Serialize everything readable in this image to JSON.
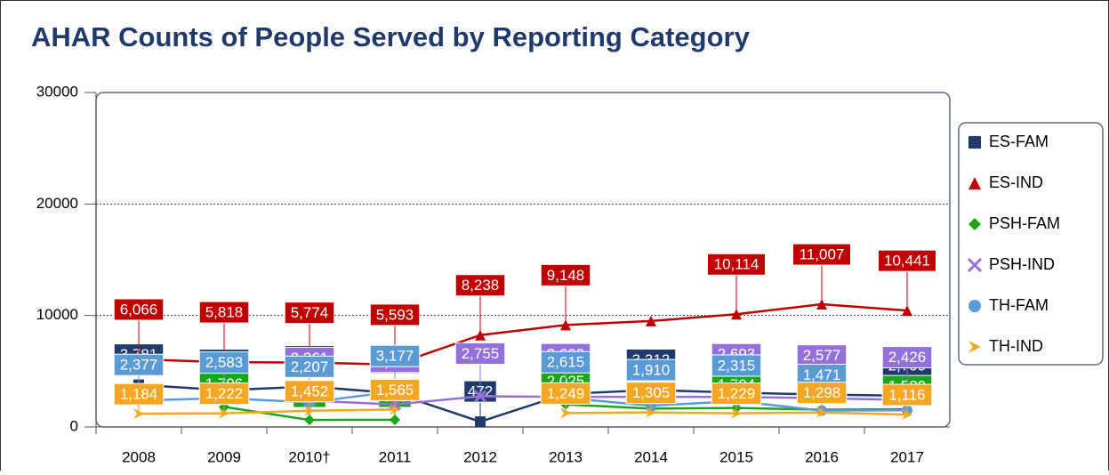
{
  "chart_data": {
    "type": "line",
    "title": "AHAR Counts of People Served by Reporting Category",
    "categories": [
      "2008",
      "2009",
      "2010†",
      "2011",
      "2012",
      "2013",
      "2014",
      "2015",
      "2016",
      "2017"
    ],
    "ylim": [
      0,
      30000
    ],
    "yticks": [
      0,
      10000,
      20000,
      30000
    ],
    "grid": true,
    "legend": "right",
    "series": [
      {
        "name": "ES-FAM",
        "color": "#1f3a6b",
        "marker": "square",
        "values": [
          3781,
          3299,
          3631,
          3035,
          472,
          2967,
          3312,
          3085,
          2900,
          2799
        ],
        "value_labels": [
          "3,781",
          "3,299",
          "3,631",
          "3,035",
          "472",
          "2,967",
          "3,312",
          "3,085",
          null,
          "2,799"
        ]
      },
      {
        "name": "ES-IND",
        "color": "#c00000",
        "marker": "triangle",
        "values": [
          6066,
          5818,
          5774,
          5593,
          8238,
          9148,
          9500,
          10114,
          11007,
          10441
        ],
        "value_labels": [
          "6,066",
          "5,818",
          "5,774",
          "5,593",
          "8,238",
          "9,148",
          null,
          "10,114",
          "11,007",
          "10,441"
        ]
      },
      {
        "name": "PSH-FAM",
        "color": "#1aa51a",
        "marker": "diamond",
        "values": [
          null,
          1796,
          633,
          640,
          null,
          2025,
          1650,
          1704,
          1553,
          1589
        ],
        "value_labels": [
          null,
          "1,796",
          "633",
          "640",
          null,
          "2,025",
          null,
          "1,704",
          "1,553",
          "1,589"
        ]
      },
      {
        "name": "PSH-IND",
        "color": "#9370db",
        "marker": "cross",
        "values": [
          null,
          null,
          2361,
          2013,
          2755,
          2699,
          2700,
          2693,
          2577,
          2426
        ],
        "value_labels": [
          null,
          null,
          "2,361",
          "2,013",
          "2,755",
          "2,699",
          null,
          "2,693",
          "2,577",
          "2,426"
        ]
      },
      {
        "name": "TH-FAM",
        "color": "#5b9bd5",
        "marker": "circle",
        "values": [
          2377,
          2583,
          2207,
          3177,
          null,
          2615,
          1910,
          2315,
          1471,
          1500
        ],
        "value_labels": [
          "2,377",
          "2,583",
          "2,207",
          "3,177",
          null,
          "2,615",
          "1,910",
          "2,315",
          "1,471",
          null
        ]
      },
      {
        "name": "TH-IND",
        "color": "#f5a623",
        "marker": "arrow",
        "values": [
          1184,
          1222,
          1452,
          1565,
          null,
          1249,
          1305,
          1229,
          1298,
          1116
        ],
        "value_labels": [
          "1,184",
          "1,222",
          "1,452",
          "1,565",
          null,
          "1,249",
          "1,305",
          "1,229",
          "1,298",
          "1,116"
        ]
      }
    ]
  }
}
